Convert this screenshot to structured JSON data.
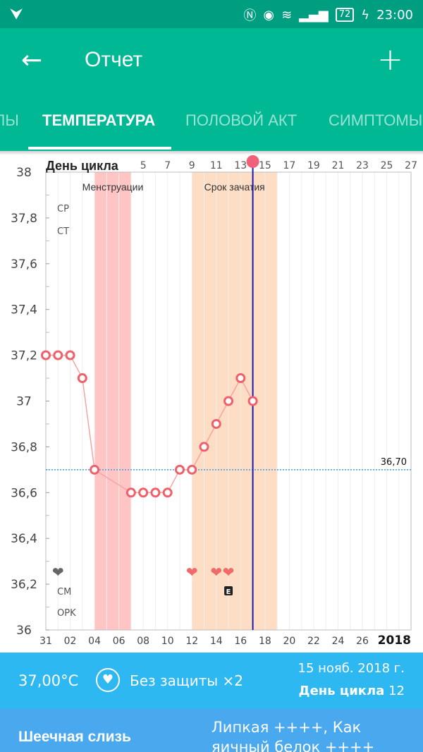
{
  "status_bar": {
    "left_icon": "download-notification-icon",
    "battery": "72",
    "time": "23:00"
  },
  "app_bar": {
    "title": "Отчет",
    "back_icon": "arrow-left-icon",
    "add_icon": "plus-icon"
  },
  "tabs": [
    {
      "label": "ЦИКЛЫ",
      "active": false
    },
    {
      "label": "ТЕМПЕРАТУРА",
      "active": true
    },
    {
      "label": "ПОЛОВОЙ АКТ",
      "active": false
    },
    {
      "label": "СИМПТОМЫ",
      "active": false
    }
  ],
  "chart_data": {
    "type": "line",
    "header_label": "День цикла",
    "cycle_day_ticks": [
      "5",
      "7",
      "9",
      "11",
      "13",
      "15",
      "17",
      "19",
      "21",
      "23",
      "25",
      "27"
    ],
    "date_ticks": [
      "31",
      "02",
      "04",
      "06",
      "08",
      "10",
      "12",
      "14",
      "16",
      "18",
      "20",
      "22",
      "24",
      "26"
    ],
    "year": "2018",
    "y_ticks": [
      "38",
      "37,8",
      "37,6",
      "37,4",
      "37,2",
      "37",
      "36,8",
      "36,6",
      "36,4",
      "36,2",
      "36"
    ],
    "ylim": [
      36,
      38
    ],
    "row_labels": [
      "CP",
      "CT",
      "CM",
      "OPK"
    ],
    "bands": [
      {
        "label": "Менструации",
        "from": 4.0,
        "to": 7.0,
        "color": "#ffc4c4"
      },
      {
        "label": "Срок зачатия",
        "from": 12.0,
        "to": 19.0,
        "color": "#fdddc4"
      }
    ],
    "coverline": {
      "value": 36.7,
      "label": "36,70"
    },
    "selected_day": 17,
    "series": [
      {
        "x": [
          31,
          1,
          2,
          3,
          4,
          7,
          8,
          9,
          10,
          11,
          12,
          13,
          14,
          15,
          16,
          17
        ],
        "values": [
          37.2,
          37.2,
          37.2,
          37.1,
          36.7,
          36.6,
          36.6,
          36.6,
          36.6,
          36.7,
          36.7,
          36.8,
          36.9,
          37.0,
          37.1,
          37.0
        ]
      }
    ],
    "intercourse": [
      {
        "x": 1,
        "color": "#666666"
      },
      {
        "x": 12,
        "color": "#f06a6a"
      },
      {
        "x": 14,
        "color": "#f06a6a"
      },
      {
        "x": 15,
        "color": "#f06a6a"
      }
    ],
    "cm_marks": [
      {
        "x": 15,
        "label": "E"
      }
    ]
  },
  "info": {
    "temperature": "37,00°C",
    "protection": "Без защиты ×2",
    "date": "15 нояб. 2018 г.",
    "cycle_label": "День цикла",
    "cycle_day": "12"
  },
  "mucus": {
    "label": "Шеечная слизь",
    "value_line1": "Липкая ++++, Как",
    "value_line2": "яичный белок ++++"
  }
}
